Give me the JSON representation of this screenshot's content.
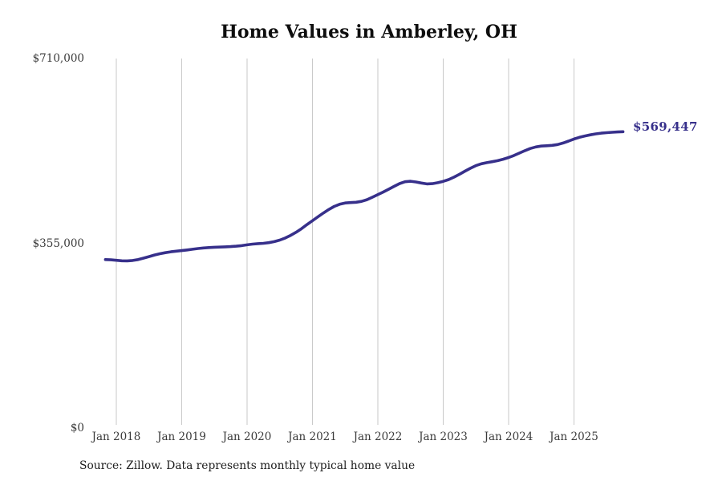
{
  "chart": {
    "title": "Home Values in Amberley, OH",
    "source": "Source: Zillow. Data represents monthly typical home value",
    "end_label": "$569,447",
    "line_color": "#37308b",
    "grid_color": "#c9c9c9",
    "title_color": "#0e0e0e",
    "tick_color": "#3a3a3a"
  },
  "chart_data": {
    "type": "line",
    "title": "Home Values in Amberley, OH",
    "xlabel": "",
    "ylabel": "",
    "ylim": [
      0,
      710000
    ],
    "grid": "vertical-only",
    "legend": "none",
    "y_ticks": [
      {
        "value": 0,
        "label": "$0"
      },
      {
        "value": 355000,
        "label": "$355,000"
      },
      {
        "value": 710000,
        "label": "$710,000"
      }
    ],
    "x_ticks": [
      "Jan 2018",
      "Jan 2019",
      "Jan 2020",
      "Jan 2021",
      "Jan 2022",
      "Jan 2023",
      "Jan 2024",
      "Jan 2025"
    ],
    "start_month": "2017-11",
    "frequency": "monthly",
    "final_value": 569447,
    "series": [
      {
        "name": "Typical home value",
        "values": [
          323800,
          323200,
          322400,
          321500,
          321200,
          322000,
          323800,
          326500,
          329500,
          332500,
          335000,
          337000,
          338600,
          339900,
          341000,
          342200,
          343600,
          345000,
          346100,
          346900,
          347400,
          347800,
          348200,
          348700,
          349500,
          350600,
          352000,
          353400,
          354400,
          355000,
          356200,
          358200,
          361200,
          365200,
          370200,
          376200,
          383200,
          391000,
          398500,
          406000,
          413200,
          420000,
          425800,
          430000,
          432400,
          433200,
          433800,
          435500,
          438800,
          443500,
          448500,
          453500,
          459000,
          464500,
          469800,
          473300,
          474200,
          472800,
          470800,
          469200,
          469600,
          471500,
          474000,
          477500,
          482200,
          487800,
          493600,
          499200,
          504200,
          507800,
          510000,
          511800,
          513800,
          516500,
          519800,
          523800,
          528400,
          533000,
          537200,
          540200,
          541800,
          542400,
          543200,
          544800,
          547600,
          551400,
          555400,
          558600,
          561200,
          563400,
          565200,
          566600,
          567600,
          568300,
          568900,
          569447
        ]
      }
    ]
  }
}
